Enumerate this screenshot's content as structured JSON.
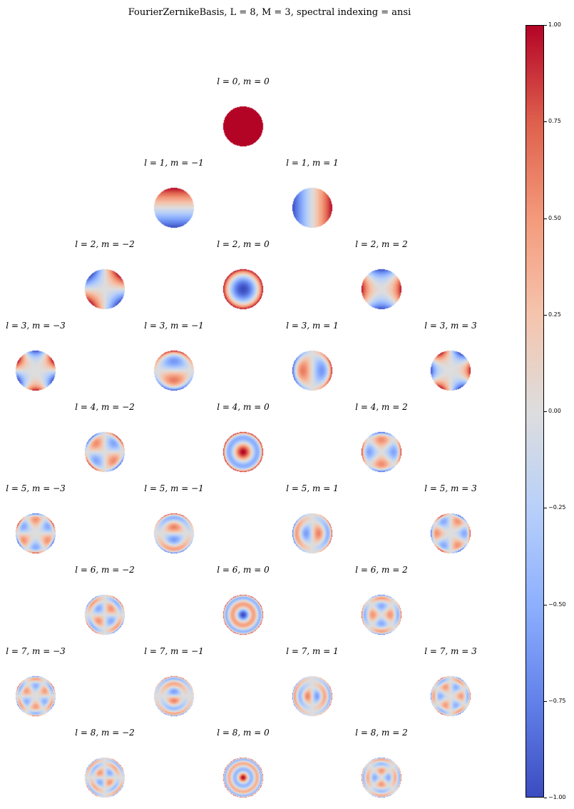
{
  "title": "FourierZernikeBasis, L = 8,  M = 3, spectral indexing = ansi",
  "chart_data": {
    "type": "heatmap",
    "title": "FourierZernikeBasis, L = 8,  M = 3, spectral indexing = ansi",
    "colormap": "coolwarm",
    "clim": [
      -1,
      1
    ],
    "subplots": [
      {
        "l": 0,
        "m": 0,
        "label": "l = 0, m = 0"
      },
      {
        "l": 1,
        "m": -1,
        "label": "l = 1, m = −1"
      },
      {
        "l": 1,
        "m": 1,
        "label": "l = 1, m = 1"
      },
      {
        "l": 2,
        "m": -2,
        "label": "l = 2, m = −2"
      },
      {
        "l": 2,
        "m": 0,
        "label": "l = 2, m = 0"
      },
      {
        "l": 2,
        "m": 2,
        "label": "l = 2, m = 2"
      },
      {
        "l": 3,
        "m": -3,
        "label": "l = 3, m = −3"
      },
      {
        "l": 3,
        "m": -1,
        "label": "l = 3, m = −1"
      },
      {
        "l": 3,
        "m": 1,
        "label": "l = 3, m = 1"
      },
      {
        "l": 3,
        "m": 3,
        "label": "l = 3, m = 3"
      },
      {
        "l": 4,
        "m": -2,
        "label": "l = 4, m = −2"
      },
      {
        "l": 4,
        "m": 0,
        "label": "l = 4, m = 0"
      },
      {
        "l": 4,
        "m": 2,
        "label": "l = 4, m = 2"
      },
      {
        "l": 5,
        "m": -3,
        "label": "l = 5, m = −3"
      },
      {
        "l": 5,
        "m": -1,
        "label": "l = 5, m = −1"
      },
      {
        "l": 5,
        "m": 1,
        "label": "l = 5, m = 1"
      },
      {
        "l": 5,
        "m": 3,
        "label": "l = 5, m = 3"
      },
      {
        "l": 6,
        "m": -2,
        "label": "l = 6, m = −2"
      },
      {
        "l": 6,
        "m": 0,
        "label": "l = 6, m = 0"
      },
      {
        "l": 6,
        "m": 2,
        "label": "l = 6, m = 2"
      },
      {
        "l": 7,
        "m": -3,
        "label": "l = 7, m = −3"
      },
      {
        "l": 7,
        "m": -1,
        "label": "l = 7, m = −1"
      },
      {
        "l": 7,
        "m": 1,
        "label": "l = 7, m = 1"
      },
      {
        "l": 7,
        "m": 3,
        "label": "l = 7, m = 3"
      },
      {
        "l": 8,
        "m": -2,
        "label": "l = 8, m = −2"
      },
      {
        "l": 8,
        "m": 0,
        "label": "l = 8, m = 0"
      },
      {
        "l": 8,
        "m": 2,
        "label": "l = 8, m = 2"
      }
    ],
    "colorbar": {
      "ticks": [
        1.0,
        0.75,
        0.5,
        0.25,
        0.0,
        -0.25,
        -0.5,
        -0.75,
        -1.0
      ],
      "tick_labels": [
        "1.00",
        "0.75",
        "0.50",
        "0.25",
        "0.00",
        "−0.25",
        "−0.50",
        "−0.75",
        "−1.00"
      ]
    }
  }
}
